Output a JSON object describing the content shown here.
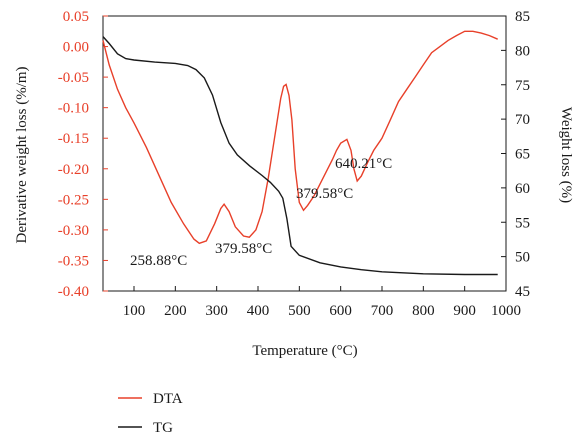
{
  "chart_data": {
    "type": "line",
    "xlabel": "Temperature (°C)",
    "ylabel_left": "Derivative weight loss (%/m)",
    "ylabel_right": "Weight loss (%)",
    "xlim": [
      25,
      1000
    ],
    "ylim_left": [
      -0.4,
      0.05
    ],
    "ylim_right": [
      45,
      85
    ],
    "x_ticks": [
      "100",
      "200",
      "300",
      "400",
      "500",
      "600",
      "700",
      "800",
      "900",
      "1000"
    ],
    "y_left_ticks": [
      "0.05",
      "0.00",
      "-0.05",
      "-0.10",
      "-0.15",
      "-0.20",
      "-0.25",
      "-0.30",
      "-0.35",
      "-0.40"
    ],
    "y_right_ticks": [
      "85",
      "80",
      "75",
      "70",
      "65",
      "60",
      "55",
      "50",
      "45"
    ],
    "grid": false,
    "legend_position": "bottom-left",
    "colors": {
      "DTA": "#e8402a",
      "TG": "#1a1a1a",
      "left_axis": "#e8402a",
      "right_axis": "#1a1a1a"
    },
    "series": [
      {
        "name": "DTA",
        "axis": "left",
        "x": [
          25,
          40,
          60,
          80,
          100,
          130,
          160,
          190,
          220,
          245,
          258,
          275,
          295,
          310,
          318,
          330,
          345,
          365,
          379,
          395,
          410,
          425,
          440,
          455,
          462,
          468,
          475,
          482,
          490,
          500,
          510,
          520,
          535,
          550,
          565,
          580,
          590,
          600,
          615,
          625,
          632,
          640,
          650,
          665,
          680,
          700,
          720,
          740,
          760,
          780,
          800,
          820,
          840,
          860,
          880,
          900,
          920,
          940,
          960,
          980
        ],
        "y": [
          0.01,
          -0.03,
          -0.07,
          -0.1,
          -0.125,
          -0.165,
          -0.21,
          -0.255,
          -0.29,
          -0.315,
          -0.322,
          -0.318,
          -0.29,
          -0.265,
          -0.258,
          -0.27,
          -0.295,
          -0.31,
          -0.312,
          -0.3,
          -0.27,
          -0.215,
          -0.15,
          -0.085,
          -0.065,
          -0.062,
          -0.08,
          -0.12,
          -0.2,
          -0.255,
          -0.268,
          -0.26,
          -0.245,
          -0.225,
          -0.205,
          -0.185,
          -0.17,
          -0.158,
          -0.152,
          -0.17,
          -0.2,
          -0.22,
          -0.212,
          -0.19,
          -0.17,
          -0.15,
          -0.12,
          -0.09,
          -0.07,
          -0.05,
          -0.03,
          -0.01,
          0.0,
          0.01,
          0.018,
          0.025,
          0.025,
          0.022,
          0.018,
          0.012
        ]
      },
      {
        "name": "TG",
        "axis": "right",
        "x": [
          25,
          40,
          60,
          80,
          100,
          150,
          200,
          230,
          250,
          270,
          290,
          310,
          330,
          350,
          380,
          410,
          430,
          450,
          460,
          470,
          480,
          500,
          550,
          600,
          650,
          700,
          800,
          900,
          980
        ],
        "y": [
          82,
          81,
          79.5,
          78.8,
          78.6,
          78.3,
          78.1,
          77.8,
          77.2,
          76.0,
          73.5,
          69.5,
          66.5,
          64.8,
          63.2,
          61.8,
          60.8,
          59.5,
          58.5,
          55.5,
          51.5,
          50.2,
          49.1,
          48.5,
          48.1,
          47.8,
          47.5,
          47.4,
          47.4
        ]
      }
    ],
    "annotations": [
      {
        "text": "258.88°C"
      },
      {
        "text": "379.58°C"
      },
      {
        "text": "379.58°C"
      },
      {
        "text": "640.21°C"
      }
    ]
  }
}
